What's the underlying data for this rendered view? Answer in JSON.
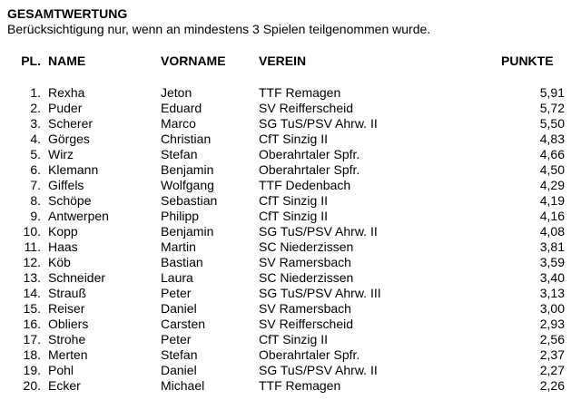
{
  "page": {
    "title": "GESAMTWERTUNG",
    "subtitle": "Berücksichtigung nur, wenn an mindestens 3 Spielen teilgenommen wurde."
  },
  "colors": {
    "text": "#000000",
    "background": "#ffffff"
  },
  "table": {
    "headers": {
      "pl": "PL.",
      "name": "NAME",
      "vorname": "VORNAME",
      "verein": "VEREIN",
      "punkte": "PUNKTE"
    },
    "rows": [
      {
        "pl": "1.",
        "name": "Rexha",
        "vorname": "Jeton",
        "verein": "TTF Remagen",
        "punkte": "5,91"
      },
      {
        "pl": "2.",
        "name": "Puder",
        "vorname": "Eduard",
        "verein": "SV Reifferscheid",
        "punkte": "5,72"
      },
      {
        "pl": "3.",
        "name": "Scherer",
        "vorname": "Marco",
        "verein": "SG TuS/PSV Ahrw. II",
        "punkte": "5,50"
      },
      {
        "pl": "4.",
        "name": "Görges",
        "vorname": "Christian",
        "verein": "CfT Sinzig II",
        "punkte": "4,83"
      },
      {
        "pl": "5.",
        "name": "Wirz",
        "vorname": "Stefan",
        "verein": "Oberahrtaler Spfr.",
        "punkte": "4,66"
      },
      {
        "pl": "6.",
        "name": "Klemann",
        "vorname": "Benjamin",
        "verein": "Oberahrtaler Spfr.",
        "punkte": "4,50"
      },
      {
        "pl": "7.",
        "name": "Giffels",
        "vorname": "Wolfgang",
        "verein": "TTF Dedenbach",
        "punkte": "4,29"
      },
      {
        "pl": "8.",
        "name": "Schöpe",
        "vorname": "Sebastian",
        "verein": "CfT Sinzig II",
        "punkte": "4,19"
      },
      {
        "pl": "9.",
        "name": "Antwerpen",
        "vorname": "Philipp",
        "verein": "CfT Sinzig II",
        "punkte": "4,16"
      },
      {
        "pl": "10.",
        "name": "Kopp",
        "vorname": "Benjamin",
        "verein": "SG TuS/PSV Ahrw. II",
        "punkte": "4,08"
      },
      {
        "pl": "11.",
        "name": "Haas",
        "vorname": "Martin",
        "verein": "SC Niederzissen",
        "punkte": "3,81"
      },
      {
        "pl": "12.",
        "name": "Köb",
        "vorname": "Bastian",
        "verein": "SV Ramersbach",
        "punkte": "3,59"
      },
      {
        "pl": "13.",
        "name": "Schneider",
        "vorname": "Laura",
        "verein": "SC Niederzissen",
        "punkte": "3,40"
      },
      {
        "pl": "14.",
        "name": "Strauß",
        "vorname": "Peter",
        "verein": "SG TuS/PSV Ahrw. III",
        "punkte": "3,13"
      },
      {
        "pl": "15.",
        "name": "Reiser",
        "vorname": "Daniel",
        "verein": "SV Ramersbach",
        "punkte": "3,00"
      },
      {
        "pl": "16.",
        "name": "Obliers",
        "vorname": "Carsten",
        "verein": "SV Reifferscheid",
        "punkte": "2,93"
      },
      {
        "pl": "17.",
        "name": "Strohe",
        "vorname": "Peter",
        "verein": "CfT Sinzig II",
        "punkte": "2,56"
      },
      {
        "pl": "18.",
        "name": "Merten",
        "vorname": "Stefan",
        "verein": "Oberahrtaler Spfr.",
        "punkte": "2,37"
      },
      {
        "pl": "19.",
        "name": "Pohl",
        "vorname": "Daniel",
        "verein": "SG TuS/PSV Ahrw. II",
        "punkte": "2,27"
      },
      {
        "pl": "20.",
        "name": "Ecker",
        "vorname": "Michael",
        "verein": "TTF Remagen",
        "punkte": "2,26"
      }
    ]
  }
}
